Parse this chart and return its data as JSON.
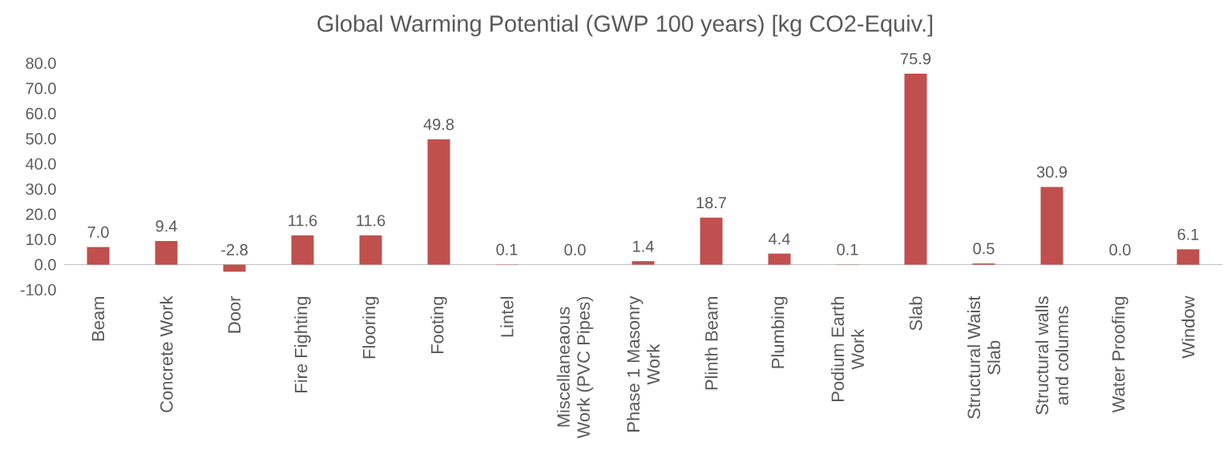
{
  "chart_data": {
    "type": "bar",
    "title": "Global Warming Potential (GWP 100 years) [kg CO2-Equiv.]",
    "categories": [
      "Beam",
      "Concrete Work",
      "Door",
      "Fire Fighting",
      "Flooring",
      "Footing",
      "Lintel",
      "Miscellaneaous Work (PVC Pipes)",
      "Phase 1 Masonry Work",
      "Plinth Beam",
      "Plumbing",
      "Podium Earth Work",
      "Slab",
      "Structural Waist Slab",
      "Structural walls and columns",
      "Water Proofing",
      "Window"
    ],
    "values": [
      7.0,
      9.4,
      -2.8,
      11.6,
      11.6,
      49.8,
      0.1,
      0.0,
      1.4,
      18.7,
      4.4,
      0.1,
      75.9,
      0.5,
      30.9,
      0.0,
      6.1
    ],
    "value_labels": [
      "7.0",
      "9.4",
      "-2.8",
      "11.6",
      "11.6",
      "49.8",
      "0.1",
      "0.0",
      "1.4",
      "18.7",
      "4.4",
      "0.1",
      "75.9",
      "0.5",
      "30.9",
      "0.0",
      "6.1"
    ],
    "color": "#c0504d",
    "ylim": [
      -10,
      80
    ],
    "yticks": [
      {
        "value": -10,
        "label": "-10.0"
      },
      {
        "value": 0,
        "label": "0.0"
      },
      {
        "value": 10,
        "label": "10.0"
      },
      {
        "value": 20,
        "label": "20.0"
      },
      {
        "value": 30,
        "label": "30.0"
      },
      {
        "value": 40,
        "label": "40.0"
      },
      {
        "value": 50,
        "label": "50.0"
      },
      {
        "value": 60,
        "label": "60.0"
      },
      {
        "value": 70,
        "label": "70.0"
      },
      {
        "value": 80,
        "label": "80.0"
      }
    ]
  }
}
